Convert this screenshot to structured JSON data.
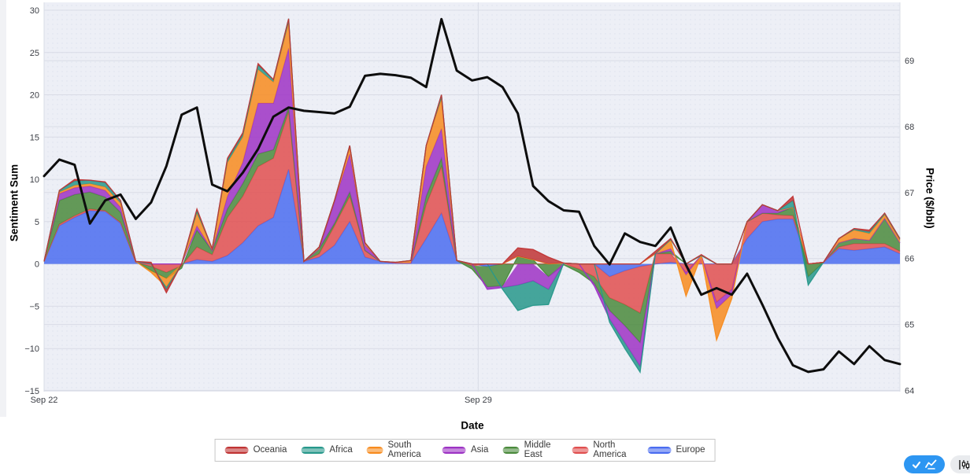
{
  "chart_data": {
    "type": "area",
    "subtype": "stacked-area-with-line-overlay",
    "title": "",
    "xlabel": "Date",
    "x_ticks": [
      {
        "day": 0,
        "label": "Sep 22"
      },
      {
        "day": 7,
        "label": "Sep 29"
      }
    ],
    "x_range_days": [
      0,
      13.8
    ],
    "n_points": 57,
    "grid": true,
    "legend_position": "bottom-center",
    "yaxis_left": {
      "label": "Sentiment Sum",
      "ticks": [
        30,
        25,
        20,
        15,
        10,
        5,
        0,
        -5,
        -10,
        -15
      ],
      "range": [
        -15.1,
        30.93
      ]
    },
    "yaxis_right": {
      "label": "Price ($/bbl)",
      "ticks": [
        69,
        68,
        67,
        66,
        65,
        64
      ],
      "range": [
        63.981,
        69.884
      ]
    },
    "stack_order_bottom_to_top": [
      "Europe",
      "North America",
      "Middle East",
      "Asia",
      "South America",
      "Africa",
      "Oceania"
    ],
    "series": [
      {
        "name": "Oceania",
        "color": "#c03434",
        "values": [
          0,
          0,
          0.2,
          0,
          0.1,
          0,
          0,
          0.2,
          -0.4,
          0,
          0.2,
          0,
          0.2,
          0.2,
          0.2,
          0,
          0,
          0,
          0,
          0,
          0,
          0,
          0,
          0,
          0,
          0,
          0,
          0,
          0,
          0,
          0,
          1.0,
          1.2,
          0.8,
          0,
          0,
          0,
          0,
          0,
          0,
          0.3,
          0.1,
          0,
          0.1,
          0,
          0,
          0,
          0,
          0,
          0.5,
          0,
          0,
          0,
          0.1,
          0.2,
          0,
          0
        ]
      },
      {
        "name": "Africa",
        "color": "#27988b",
        "values": [
          0,
          0.2,
          0.5,
          0.4,
          0.5,
          0.3,
          0,
          0,
          -0.3,
          0,
          0.3,
          0,
          0.3,
          0.3,
          0.5,
          0.3,
          0.5,
          0,
          0,
          0,
          0.2,
          0,
          0,
          0,
          0,
          0,
          0.5,
          0,
          0,
          0,
          -0.2,
          -3.0,
          -2.9,
          -1.8,
          0,
          0,
          0,
          -0.4,
          -0.7,
          -0.7,
          0,
          0.1,
          0,
          0,
          0,
          0,
          0,
          0,
          0,
          0.8,
          -1.0,
          0,
          0,
          0.1,
          0.2,
          0.2,
          0.2
        ]
      },
      {
        "name": "South America",
        "color": "#f78b1e",
        "values": [
          0,
          0.2,
          0.3,
          0.3,
          0.4,
          0.5,
          0,
          -0.2,
          -1.0,
          0,
          1.5,
          0.2,
          4.0,
          3.0,
          4.0,
          2.5,
          3.0,
          0,
          0.2,
          0.2,
          0.8,
          0.3,
          0,
          0.1,
          0.3,
          2.5,
          3.5,
          0,
          0,
          0,
          0,
          0,
          0,
          0,
          0,
          0,
          0,
          0,
          0,
          0,
          0,
          1.0,
          -2.5,
          0,
          -3.7,
          -0.5,
          0,
          0,
          0,
          0,
          0,
          0,
          0.5,
          1.0,
          0.8,
          0.4,
          0.3
        ]
      },
      {
        "name": "Asia",
        "color": "#9d33c4",
        "values": [
          0,
          0.8,
          0.8,
          0.7,
          0.8,
          0.6,
          0,
          0,
          0,
          0,
          0.5,
          0,
          1.5,
          2.5,
          6.0,
          5.5,
          7.0,
          0,
          0,
          2.5,
          4.5,
          0.6,
          0,
          0,
          0,
          3.5,
          3.5,
          0,
          0,
          -0.3,
          -0.2,
          -2.5,
          -2.0,
          -1.5,
          0,
          0,
          -0.3,
          -1.0,
          -2.0,
          -2.8,
          0,
          0.3,
          -0.3,
          0,
          -0.8,
          -0.6,
          0,
          1.0,
          0.3,
          0,
          0,
          0,
          0,
          0,
          0,
          0,
          0
        ]
      },
      {
        "name": "Middle East",
        "color": "#4a8a3c",
        "values": [
          0,
          2.8,
          2.5,
          2.0,
          1.6,
          1.2,
          0.1,
          -0.5,
          -0.7,
          -0.3,
          2.0,
          0.5,
          1.0,
          1.5,
          1.5,
          1.0,
          0.5,
          0,
          0.6,
          0.3,
          0.5,
          0,
          0,
          0,
          0,
          1.0,
          1.0,
          0,
          -0.4,
          -2.4,
          -2.6,
          0.9,
          0.5,
          -1.5,
          -0.1,
          -0.4,
          -0.8,
          -1.5,
          -2.5,
          -3.5,
          0,
          0.3,
          0,
          0,
          0,
          0,
          0,
          0,
          0.2,
          1.0,
          -1.5,
          0,
          0.5,
          0.6,
          0.4,
          3.0,
          1.0
        ]
      },
      {
        "name": "North America",
        "color": "#e04f4f",
        "values": [
          0,
          0.2,
          0.2,
          0.2,
          0.1,
          0.1,
          0,
          -0.3,
          -1.0,
          -0.2,
          1.5,
          0.8,
          4.5,
          5.5,
          7.0,
          7.0,
          6.8,
          0,
          0.4,
          2.3,
          3.0,
          0.8,
          0,
          0,
          0,
          4.0,
          5.5,
          0,
          -0.2,
          0,
          0,
          0,
          0,
          0,
          0,
          -0.6,
          -1.5,
          -2.5,
          -4.0,
          -5.5,
          1.2,
          1.0,
          -1.0,
          1.0,
          -4.5,
          -3.0,
          2.0,
          1.0,
          0.5,
          0.4,
          0,
          0,
          0.2,
          0.8,
          0.6,
          0.4,
          0.3
        ]
      },
      {
        "name": "Europe",
        "color": "#4a6cf0",
        "values": [
          0.3,
          4.5,
          5.5,
          6.3,
          6.2,
          4.8,
          0.2,
          0,
          0,
          0,
          0.5,
          0.3,
          1.0,
          2.5,
          4.5,
          5.5,
          11.2,
          0.3,
          0.8,
          2.2,
          5.0,
          0.8,
          0.3,
          0.1,
          0.1,
          3.0,
          6.0,
          0.4,
          0,
          -0.3,
          0,
          0,
          0,
          0,
          0.1,
          0,
          0,
          -1.5,
          -0.8,
          -0.3,
          0,
          0.2,
          0,
          0,
          0,
          0,
          3.0,
          5.0,
          5.3,
          5.3,
          0,
          0.2,
          1.8,
          1.6,
          1.8,
          2.0,
          1.2
        ]
      }
    ],
    "price_line": {
      "name": "Price",
      "color": "#0d0d0d",
      "width": 3,
      "values": [
        67.25,
        67.5,
        67.42,
        66.53,
        66.88,
        66.97,
        66.6,
        66.85,
        67.4,
        68.18,
        68.29,
        67.12,
        67.02,
        67.3,
        67.66,
        68.15,
        68.29,
        68.24,
        68.22,
        68.2,
        68.3,
        68.77,
        68.8,
        68.78,
        68.74,
        68.6,
        69.63,
        68.85,
        68.7,
        68.75,
        68.6,
        68.2,
        67.1,
        66.87,
        66.73,
        66.71,
        66.19,
        65.91,
        66.38,
        66.25,
        66.19,
        66.47,
        65.9,
        65.45,
        65.55,
        65.45,
        65.77,
        65.3,
        64.8,
        64.38,
        64.28,
        64.32,
        64.59,
        64.4,
        64.67,
        64.46,
        64.4
      ]
    }
  },
  "legend": {
    "items": [
      {
        "label": "Oceania",
        "color": "#c03434"
      },
      {
        "label": "Africa",
        "color": "#27988b"
      },
      {
        "label": "South America",
        "color": "#f78b1e"
      },
      {
        "label": "Asia",
        "color": "#9d33c4"
      },
      {
        "label": "Middle East",
        "color": "#4a8a3c"
      },
      {
        "label": "North America",
        "color": "#e04f4f"
      },
      {
        "label": "Europe",
        "color": "#4a6cf0"
      }
    ]
  },
  "toolbar": {
    "buttons": [
      {
        "name": "line-chart",
        "active": true
      },
      {
        "name": "candlestick",
        "active": false
      }
    ],
    "active_color": "#2d96f2"
  }
}
